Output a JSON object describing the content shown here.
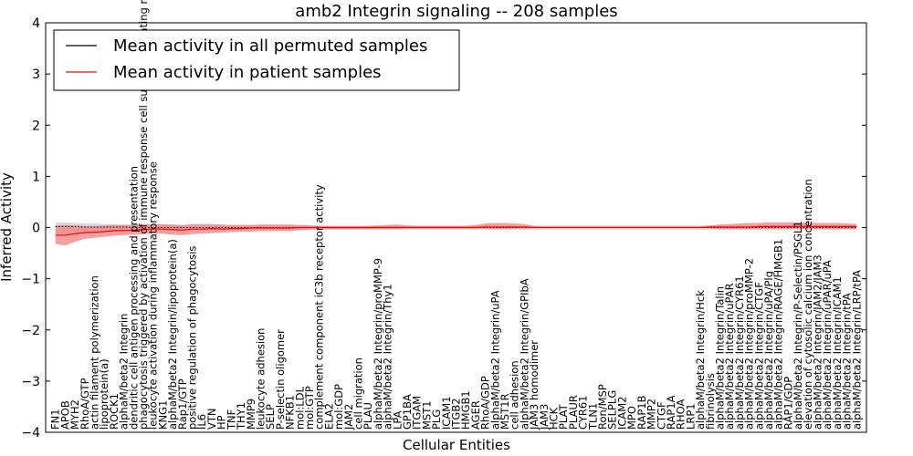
{
  "chart_data": {
    "type": "line",
    "title": "amb2 Integrin signaling -- 208 samples",
    "xlabel": "Cellular Entities",
    "ylabel": "Inferred Activity",
    "ylim": [
      -4,
      4
    ],
    "yticks": [
      -4,
      -3,
      -2,
      -1,
      0,
      1,
      2,
      3,
      4
    ],
    "legend_position": "top-left",
    "colors": {
      "permuted": "#000000",
      "patient": "#ff0000",
      "patient_band": "#f08080",
      "permuted_band": "#c8c8d8"
    },
    "categories": [
      "FN1",
      "APOB",
      "MYH2",
      "RhoA/GTP",
      "actin filament polymerization",
      "lipoprotein(a)",
      "ROCK1",
      "alphaM/beta2 Integrin",
      "dendritic cell antigen processing and presentation",
      "phagocytosis triggered by activation of immune response cell surface activating receptor",
      "leukocyte activation during inflammatory response",
      "KNG1",
      "alphaM/beta2 Integrin/lipoprotein(a)",
      "Rap1/GTP",
      "positive regulation of phagocytosis",
      "IL6",
      "VTN",
      "HP",
      "TNF",
      "THY1",
      "MMP9",
      "leukocyte adhesion",
      "SELP",
      "P-selectin oligomer",
      "NFKB1",
      "mol:LDL",
      "mol:GTP",
      "complement component iC3b receptor activity",
      "ELA2",
      "mol:GDP",
      "JAM2",
      "cell migration",
      "PLAU",
      "alphaM/beta2 Integrin/proMMP-9",
      "alphaM/beta2 Integrin/Thy1",
      "LPA",
      "GP1BA",
      "ITGAM",
      "MST1",
      "PLG",
      "ICAM1",
      "ITGB2",
      "HMGB1",
      "AGER",
      "RhoA/GDP",
      "alphaM/beta2 Integrin/uPA",
      "MST1R",
      "cell adhesion",
      "alphaM/beta2 Integrin/GPIbA",
      "JAM3 homodimer",
      "JAM3",
      "HCK",
      "PLAT",
      "PLAUR",
      "CYR61",
      "TLN1",
      "Ron/MSP",
      "SELPLG",
      "ICAM2",
      "MPO",
      "RAP1B",
      "MMP2",
      "CTGF",
      "RAP1A",
      "RHOA",
      "LRP1",
      "alphaM/beta2 Integrin/Hck",
      "fibrinolysis",
      "alphaM/beta2 Integrin/Talin",
      "alphaM/beta2 Integrin/uPAR",
      "alphaM/beta2 Integrin/CYR61",
      "alphaM/beta2 Integrin/proMMP-2",
      "alphaM/beta2 Integrin/CTGF",
      "alphaM/beta2 Integrin/uPA/Plg",
      "alphaM/beta2 Integrin/RAGE/HMGB1",
      "RAP1/GDP",
      "alphaM/beta2 Integrin/P-Selectin/PSGL1",
      "elevation of cytosolic calcium ion concentration",
      "alphaM/beta2 Integrin/JAM2/JAM3",
      "alphaM/beta2 Integrin/uPAR/uPA",
      "alphaM/beta2 Integrin/ICAM1",
      "alphaM/beta2 Integrin/tPA",
      "alphaM/beta2 Integrin/LRP/tPA"
    ],
    "series": [
      {
        "name": "Mean activity in all permuted samples",
        "values": [
          0.02,
          0.02,
          0.02,
          0.01,
          0.01,
          0.01,
          0.01,
          0.01,
          0.0,
          0.0,
          0.0,
          0.0,
          0.0,
          0.0,
          0.0,
          0.0,
          0.0,
          0.0,
          0.0,
          0.0,
          0.0,
          0.0,
          0.0,
          0.0,
          0.0,
          0.0,
          0.0,
          0.0,
          0.0,
          0.0,
          0.0,
          0.0,
          0.0,
          0.0,
          0.0,
          0.0,
          0.0,
          0.0,
          0.0,
          0.0,
          0.0,
          0.0,
          0.0,
          0.0,
          0.0,
          0.0,
          0.0,
          0.0,
          0.0,
          0.0,
          0.0,
          0.0,
          0.0,
          0.0,
          0.0,
          0.0,
          0.0,
          0.0,
          0.0,
          0.0,
          0.0,
          0.0,
          0.0,
          0.0,
          0.0,
          0.0,
          0.0,
          0.0,
          0.0,
          0.0,
          0.0,
          0.0,
          0.0,
          0.0,
          0.0,
          0.0,
          0.0,
          0.0,
          0.0,
          0.0,
          0.0,
          0.0,
          0.0
        ],
        "lower": [
          -0.12,
          -0.12,
          -0.1,
          -0.1,
          -0.09,
          -0.08,
          -0.08,
          -0.07,
          -0.06,
          -0.06,
          -0.06,
          -0.06,
          -0.06,
          -0.06,
          -0.05,
          -0.05,
          -0.05,
          -0.05,
          -0.05,
          -0.05,
          -0.05,
          -0.05,
          -0.05,
          -0.05,
          -0.05,
          -0.05,
          -0.05,
          -0.04,
          -0.04,
          -0.04,
          -0.04,
          -0.04,
          -0.04,
          -0.04,
          -0.04,
          -0.04,
          -0.04,
          -0.04,
          -0.04,
          -0.04,
          -0.04,
          -0.04,
          -0.04,
          -0.04,
          -0.04,
          -0.04,
          -0.04,
          -0.04,
          -0.04,
          -0.04,
          -0.04,
          -0.04,
          -0.04,
          -0.04,
          -0.04,
          -0.04,
          -0.04,
          -0.04,
          -0.04,
          -0.04,
          -0.04,
          -0.04,
          -0.04,
          -0.04,
          -0.04,
          -0.04,
          -0.04,
          -0.04,
          -0.04,
          -0.04,
          -0.04,
          -0.04,
          -0.04,
          -0.04,
          -0.04,
          -0.04,
          -0.04,
          -0.04,
          -0.04,
          -0.04,
          -0.04,
          -0.04,
          -0.04
        ],
        "upper": [
          0.1,
          0.1,
          0.09,
          0.08,
          0.08,
          0.07,
          0.07,
          0.06,
          0.06,
          0.06,
          0.05,
          0.05,
          0.05,
          0.05,
          0.05,
          0.05,
          0.05,
          0.05,
          0.05,
          0.05,
          0.05,
          0.05,
          0.05,
          0.05,
          0.05,
          0.05,
          0.05,
          0.04,
          0.04,
          0.04,
          0.04,
          0.04,
          0.04,
          0.04,
          0.04,
          0.04,
          0.04,
          0.04,
          0.04,
          0.04,
          0.04,
          0.04,
          0.04,
          0.04,
          0.04,
          0.04,
          0.04,
          0.04,
          0.04,
          0.04,
          0.04,
          0.04,
          0.04,
          0.04,
          0.04,
          0.04,
          0.04,
          0.04,
          0.04,
          0.04,
          0.04,
          0.04,
          0.04,
          0.04,
          0.04,
          0.04,
          0.04,
          0.04,
          0.04,
          0.04,
          0.04,
          0.04,
          0.04,
          0.04,
          0.04,
          0.04,
          0.04,
          0.04,
          0.04,
          0.04,
          0.04,
          0.04,
          0.04
        ]
      },
      {
        "name": "Mean activity in patient samples",
        "values": [
          -0.15,
          -0.15,
          -0.12,
          -0.1,
          -0.09,
          -0.08,
          -0.06,
          -0.06,
          -0.05,
          -0.04,
          -0.03,
          -0.03,
          -0.04,
          -0.05,
          -0.03,
          -0.03,
          -0.02,
          -0.03,
          -0.02,
          -0.02,
          -0.01,
          -0.01,
          -0.01,
          -0.01,
          -0.01,
          0.0,
          0.0,
          0.0,
          0.0,
          0.0,
          0.0,
          0.0,
          0.0,
          0.0,
          0.0,
          0.0,
          0.0,
          0.0,
          0.0,
          0.0,
          0.0,
          0.0,
          0.0,
          0.0,
          0.01,
          0.01,
          0.01,
          0.01,
          0.01,
          0.0,
          0.0,
          0.0,
          0.0,
          0.0,
          0.0,
          0.0,
          0.0,
          0.0,
          0.0,
          0.0,
          0.0,
          0.0,
          0.0,
          0.0,
          0.0,
          0.0,
          0.0,
          0.01,
          0.01,
          0.01,
          0.01,
          0.01,
          0.02,
          0.02,
          0.02,
          0.02,
          0.02,
          0.02,
          0.02,
          0.02,
          0.02,
          0.02,
          0.02
        ],
        "lower": [
          -0.32,
          -0.35,
          -0.28,
          -0.22,
          -0.2,
          -0.18,
          -0.16,
          -0.15,
          -0.14,
          -0.13,
          -0.12,
          -0.12,
          -0.14,
          -0.15,
          -0.13,
          -0.12,
          -0.11,
          -0.1,
          -0.09,
          -0.08,
          -0.08,
          -0.07,
          -0.07,
          -0.07,
          -0.07,
          -0.05,
          -0.04,
          -0.03,
          -0.03,
          -0.03,
          -0.03,
          -0.03,
          -0.03,
          -0.03,
          -0.03,
          -0.03,
          -0.02,
          -0.02,
          -0.02,
          -0.02,
          -0.02,
          -0.02,
          -0.02,
          -0.02,
          -0.02,
          -0.03,
          -0.03,
          -0.02,
          -0.02,
          -0.01,
          -0.01,
          -0.01,
          -0.01,
          -0.01,
          -0.01,
          -0.01,
          -0.01,
          -0.01,
          -0.01,
          -0.01,
          -0.01,
          -0.01,
          -0.01,
          -0.01,
          -0.01,
          -0.01,
          -0.01,
          -0.02,
          -0.03,
          -0.03,
          -0.03,
          -0.03,
          -0.03,
          -0.03,
          -0.03,
          -0.03,
          -0.03,
          -0.03,
          -0.03,
          -0.03,
          -0.03,
          -0.03,
          -0.03
        ],
        "upper": [
          0.04,
          0.05,
          0.04,
          0.03,
          0.03,
          0.04,
          0.05,
          0.05,
          0.05,
          0.06,
          0.07,
          0.07,
          0.06,
          0.05,
          0.07,
          0.07,
          0.07,
          0.06,
          0.05,
          0.05,
          0.05,
          0.06,
          0.06,
          0.06,
          0.06,
          0.05,
          0.04,
          0.03,
          0.03,
          0.03,
          0.03,
          0.03,
          0.03,
          0.04,
          0.05,
          0.06,
          0.04,
          0.03,
          0.03,
          0.03,
          0.03,
          0.03,
          0.03,
          0.05,
          0.08,
          0.09,
          0.09,
          0.08,
          0.07,
          0.03,
          0.02,
          0.02,
          0.02,
          0.02,
          0.02,
          0.02,
          0.02,
          0.02,
          0.02,
          0.02,
          0.02,
          0.02,
          0.02,
          0.02,
          0.02,
          0.02,
          0.02,
          0.04,
          0.06,
          0.07,
          0.08,
          0.09,
          0.09,
          0.1,
          0.1,
          0.1,
          0.1,
          0.1,
          0.09,
          0.09,
          0.09,
          0.08,
          0.07
        ]
      }
    ]
  }
}
